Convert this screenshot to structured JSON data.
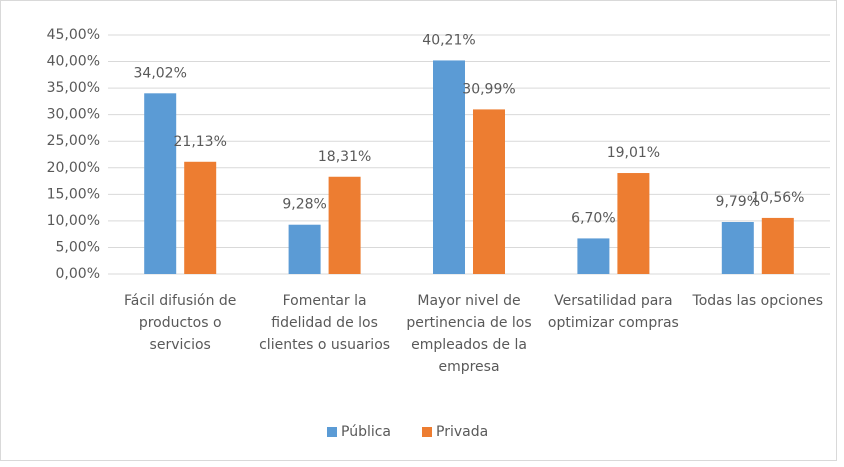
{
  "chart_data": {
    "type": "bar",
    "categories": [
      "Fácil difusión de productos o servicios",
      "Fomentar la fidelidad de los clientes o usuarios",
      "Mayor nivel de pertinencia de los empleados de la empresa",
      "Versatilidad para optimizar compras",
      "Todas las opciones"
    ],
    "series": [
      {
        "name": "Pública",
        "color": "#5b9bd5",
        "values": [
          34.02,
          9.28,
          40.21,
          6.7,
          9.79
        ],
        "value_labels": [
          "34,02%",
          "9,28%",
          "40,21%",
          "6,70%",
          "9,79%"
        ]
      },
      {
        "name": "Privada",
        "color": "#ed7d31",
        "values": [
          21.13,
          18.31,
          30.99,
          19.01,
          10.56
        ],
        "value_labels": [
          "21,13%",
          "18,31%",
          "30,99%",
          "19,01%",
          "10,56%"
        ]
      }
    ],
    "ylim": [
      0,
      45
    ],
    "yticks": [
      {
        "value": 0,
        "label": "0,00%"
      },
      {
        "value": 5,
        "label": "5,00%"
      },
      {
        "value": 10,
        "label": "10,00%"
      },
      {
        "value": 15,
        "label": "15,00%"
      },
      {
        "value": 20,
        "label": "20,00%"
      },
      {
        "value": 25,
        "label": "25,00%"
      },
      {
        "value": 30,
        "label": "30,00%"
      },
      {
        "value": 35,
        "label": "35,00%"
      },
      {
        "value": 40,
        "label": "40,00%"
      },
      {
        "value": 45,
        "label": "45,00%"
      }
    ],
    "grid": true,
    "legend": "bottom"
  }
}
